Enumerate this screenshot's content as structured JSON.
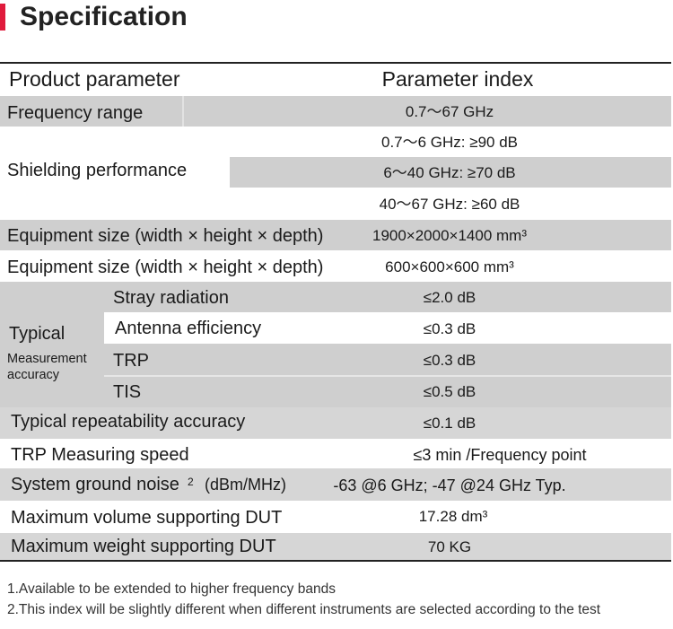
{
  "title": "Specification",
  "header": {
    "param": "Product parameter",
    "index": "Parameter index"
  },
  "rows": {
    "frequency_range": {
      "label": "Frequency range",
      "value": "0.7～67 GHz"
    },
    "shielding": {
      "label": "Shielding performance",
      "values": [
        "0.7～6 GHz: ≥90 dB",
        "6～40 GHz: ≥70 dB",
        "40～67 GHz: ≥60 dB"
      ]
    },
    "equipment_size_1": {
      "label": "Equipment size (width × height × depth)",
      "value": "1900×2000×1400 mm³"
    },
    "equipment_size_2": {
      "label": "Equipment size (width × height × depth)",
      "value": "600×600×600 mm³"
    },
    "typical": {
      "label_main": "Typical",
      "label_sub_1": "Measurement",
      "label_sub_2": "accuracy",
      "items": [
        {
          "label": "Stray radiation",
          "value": "≤2.0 dB"
        },
        {
          "label": "Antenna efficiency",
          "value": "≤0.3 dB"
        },
        {
          "label": "TRP",
          "value": "≤0.3 dB"
        },
        {
          "label": "TIS",
          "value": "≤0.5 dB"
        }
      ]
    },
    "repeatability": {
      "label": "Typical repeatability accuracy",
      "value": "≤0.1 dB"
    },
    "trp_speed": {
      "label": "TRP Measuring speed",
      "value": "≤3 min /Frequency point"
    },
    "ground_noise": {
      "label": "System ground noise",
      "sup": "2",
      "unit": "(dBm/MHz)",
      "value": "-63 @6 GHz; -47 @24 GHz Typ."
    },
    "max_volume": {
      "label": "Maximum volume supporting DUT",
      "value": "17.28 dm³"
    },
    "max_weight": {
      "label": "Maximum weight supporting DUT",
      "value": "70 KG"
    }
  },
  "notes": [
    "1.Available to be extended to higher frequency bands",
    "2.This index will be slightly different when different instruments are selected according to the test"
  ],
  "colors": {
    "accent": "#e01b3c",
    "row_fill": "#cfcfcf"
  }
}
